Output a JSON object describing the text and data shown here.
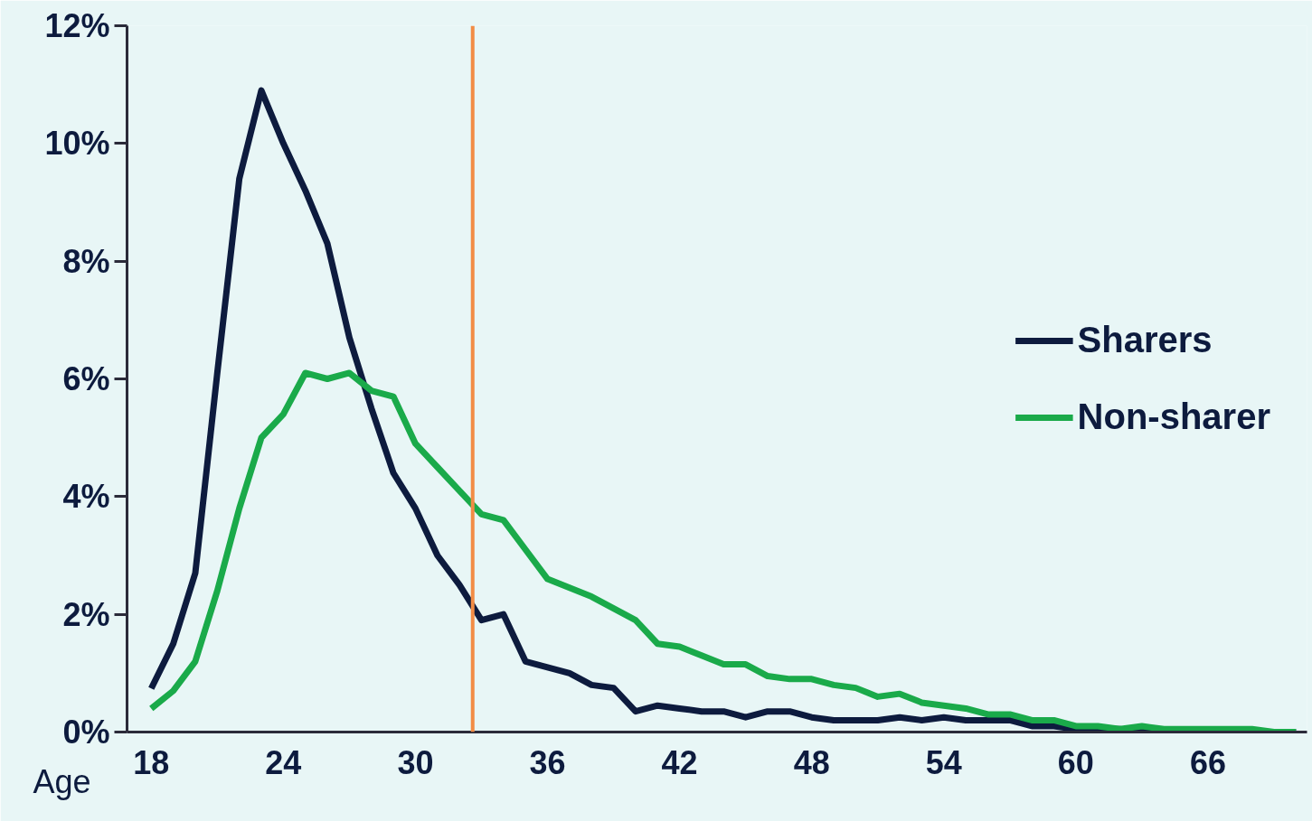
{
  "chart_data": {
    "type": "line",
    "xlabel": "Age",
    "x": [
      18,
      19,
      20,
      21,
      22,
      23,
      24,
      25,
      26,
      27,
      28,
      29,
      30,
      31,
      32,
      33,
      34,
      35,
      36,
      37,
      38,
      39,
      40,
      41,
      42,
      43,
      44,
      45,
      46,
      47,
      48,
      49,
      50,
      51,
      52,
      53,
      54,
      55,
      56,
      57,
      58,
      59,
      60,
      61,
      62,
      63,
      64,
      65,
      66,
      67,
      68,
      69,
      70
    ],
    "series": [
      {
        "name": "Sharers",
        "color": "#0d1b3e",
        "values": [
          0.74,
          1.5,
          2.7,
          6.1,
          9.4,
          10.9,
          10.0,
          9.2,
          8.3,
          6.7,
          5.5,
          4.4,
          3.8,
          3.0,
          2.5,
          1.9,
          2.0,
          1.2,
          1.1,
          1.0,
          0.8,
          0.75,
          0.35,
          0.45,
          0.4,
          0.35,
          0.35,
          0.25,
          0.35,
          0.35,
          0.25,
          0.2,
          0.2,
          0.2,
          0.25,
          0.2,
          0.25,
          0.2,
          0.2,
          0.2,
          0.1,
          0.1,
          0.05,
          0.05,
          0.05,
          0,
          0,
          0,
          0,
          0,
          0,
          0,
          0
        ]
      },
      {
        "name": "Non-sharer",
        "color": "#1aaa4a",
        "values": [
          0.4,
          0.7,
          1.2,
          2.4,
          3.8,
          5.0,
          5.4,
          6.1,
          6.0,
          6.1,
          5.8,
          5.7,
          4.9,
          4.5,
          4.1,
          3.7,
          3.6,
          3.1,
          2.6,
          2.45,
          2.3,
          2.1,
          1.9,
          1.5,
          1.45,
          1.3,
          1.15,
          1.15,
          0.95,
          0.9,
          0.9,
          0.8,
          0.75,
          0.6,
          0.65,
          0.5,
          0.45,
          0.4,
          0.3,
          0.3,
          0.2,
          0.2,
          0.1,
          0.1,
          0.05,
          0.1,
          0.05,
          0.05,
          0.05,
          0.05,
          0.05,
          0,
          0
        ]
      }
    ],
    "xlim": [
      16.9,
      70.5
    ],
    "xticks": [
      18,
      24,
      30,
      36,
      42,
      48,
      54,
      60,
      66
    ],
    "ylim": [
      0,
      12
    ],
    "yticks": [
      {
        "value": 0,
        "label": "0%"
      },
      {
        "value": 2,
        "label": "2%"
      },
      {
        "value": 4,
        "label": "4%"
      },
      {
        "value": 6,
        "label": "6%"
      },
      {
        "value": 8,
        "label": "8%"
      },
      {
        "value": 10,
        "label": "10%"
      },
      {
        "value": 12,
        "label": "12%"
      }
    ],
    "ref_lines": [
      {
        "axis": "x",
        "value": 32.6,
        "label": null,
        "color": "#f28c45"
      }
    ],
    "grid": false,
    "legend": "right",
    "marker": "none",
    "line_style": "solid"
  }
}
